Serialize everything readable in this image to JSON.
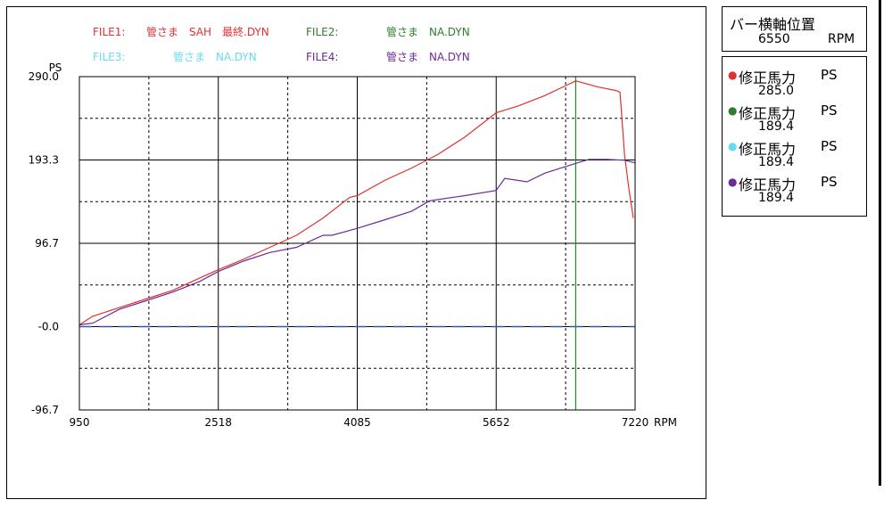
{
  "chart_data": {
    "type": "line",
    "y_axis_title": "PS",
    "x_unit": "RPM",
    "xlim": [
      950,
      7220
    ],
    "ylim": [
      -96.7,
      290.0
    ],
    "y_ticks": [
      "290.0",
      "193.3",
      "96.7",
      "-0.0",
      "-96.7"
    ],
    "x_ticks": [
      "950",
      "2518",
      "4085",
      "5652",
      "7220"
    ],
    "grid": true,
    "reference_line": {
      "y": 0,
      "style": "dashed",
      "color": "#3355bb"
    },
    "cursor_line": {
      "x": 6550,
      "color": "#228b22"
    },
    "file_labels": [
      {
        "prefix": "FILE1:",
        "name": "管さま　SAH　最終.DYN",
        "color": "#e03030"
      },
      {
        "prefix": "FILE2:",
        "name": "管さま　NA.DYN",
        "color": "#2e7d2e"
      },
      {
        "prefix": "FILE3:",
        "name": "管さま　NA.DYN",
        "color": "#66ddee"
      },
      {
        "prefix": "FILE4:",
        "name": "管さま　NA.DYN",
        "color": "#6a2a9a"
      }
    ],
    "series": [
      {
        "color": "#e03030",
        "x": [
          950,
          1100,
          1400,
          1700,
          2000,
          2300,
          2518,
          2800,
          3100,
          3400,
          3700,
          4000,
          4085,
          4400,
          4700,
          5000,
          5300,
          5652,
          5900,
          6200,
          6550,
          6800,
          7000,
          7050,
          7100,
          7150,
          7200
        ],
        "y": [
          2,
          12,
          22,
          32,
          42,
          56,
          66,
          78,
          92,
          106,
          126,
          150,
          152,
          170,
          184,
          200,
          220,
          248,
          256,
          268,
          285,
          278,
          274,
          272,
          200,
          160,
          126
        ]
      },
      {
        "color": "#6a2a9a",
        "x": [
          950,
          1100,
          1400,
          1700,
          2000,
          2300,
          2518,
          2800,
          3100,
          3400,
          3700,
          3800,
          4085,
          4400,
          4700,
          4900,
          5300,
          5652,
          5750,
          6000,
          6200,
          6550,
          6700,
          6900,
          7100,
          7220
        ],
        "y": [
          2,
          4,
          20,
          30,
          40,
          52,
          64,
          76,
          86,
          92,
          106,
          106,
          114,
          124,
          134,
          146,
          152,
          158,
          172,
          168,
          178,
          189.4,
          194,
          194,
          193,
          190
        ]
      }
    ]
  },
  "bar_position": {
    "title": "バー横軸位置",
    "value": "6550",
    "unit": "RPM"
  },
  "legend": [
    {
      "label": "修正馬力",
      "unit": "PS",
      "value": "285.0",
      "color": "#e03030"
    },
    {
      "label": "修正馬力",
      "unit": "PS",
      "value": "189.4",
      "color": "#2e7d2e"
    },
    {
      "label": "修正馬力",
      "unit": "PS",
      "value": "189.4",
      "color": "#66ddee"
    },
    {
      "label": "修正馬力",
      "unit": "PS",
      "value": "189.4",
      "color": "#6a2a9a"
    }
  ]
}
